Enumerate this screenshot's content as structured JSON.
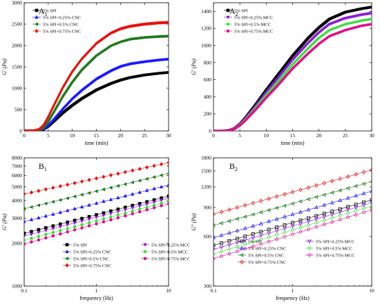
{
  "chart_data": [
    {
      "panel_label": "A",
      "panel_sub": "1",
      "type": "scatter",
      "xlabel": "time (min)",
      "ylabel": "G' (Pa)",
      "xlim": [
        0,
        30
      ],
      "ylim": [
        0,
        3000
      ],
      "xscale": "linear",
      "yscale": "linear",
      "x_ticks": [
        0,
        5,
        10,
        15,
        20,
        25,
        30
      ],
      "x_tick_labels": [
        "0",
        "5",
        "10",
        "15",
        "20",
        "25",
        "30"
      ],
      "y_ticks": [
        0,
        500,
        1000,
        1500,
        2000,
        2500,
        3000
      ],
      "y_tick_labels": [
        "0",
        "500",
        "1000",
        "1500",
        "2000",
        "2500",
        "3000"
      ],
      "legend_position": "top-left",
      "series": [
        {
          "name": "5% SPI",
          "color": "#000000",
          "marker": "square",
          "x": [
            0,
            2,
            3,
            4,
            5,
            6,
            8,
            10,
            12,
            15,
            18,
            20,
            22,
            25,
            28,
            30
          ],
          "y": [
            0,
            3,
            10,
            40,
            110,
            210,
            420,
            600,
            760,
            960,
            1110,
            1190,
            1250,
            1310,
            1350,
            1370
          ]
        },
        {
          "name": "5% SPI+0.25% CNC",
          "color": "#1a1aff",
          "marker": "triangle-up",
          "x": [
            0,
            2,
            3,
            4,
            5,
            6,
            8,
            10,
            12,
            15,
            18,
            20,
            22,
            25,
            28,
            30
          ],
          "y": [
            0,
            3,
            12,
            50,
            140,
            260,
            520,
            760,
            960,
            1220,
            1410,
            1510,
            1570,
            1620,
            1660,
            1680
          ]
        },
        {
          "name": "5% SPI+0.5% CNC",
          "color": "#1b7a1b",
          "marker": "triangle-left",
          "x": [
            0,
            2,
            3,
            4,
            5,
            6,
            8,
            10,
            12,
            15,
            18,
            20,
            22,
            25,
            28,
            30
          ],
          "y": [
            0,
            4,
            20,
            80,
            230,
            420,
            810,
            1150,
            1440,
            1770,
            2000,
            2090,
            2150,
            2190,
            2210,
            2220
          ]
        },
        {
          "name": "5% SPI+0.75% CNC",
          "color": "#e8130e",
          "marker": "diamond",
          "x": [
            0,
            2,
            3,
            4,
            5,
            6,
            8,
            10,
            12,
            15,
            18,
            20,
            22,
            25,
            28,
            30
          ],
          "y": [
            0,
            5,
            30,
            130,
            330,
            560,
            1010,
            1390,
            1690,
            2050,
            2290,
            2390,
            2450,
            2500,
            2530,
            2540
          ]
        }
      ]
    },
    {
      "panel_label": "A",
      "panel_sub": "2",
      "type": "scatter",
      "xlabel": "time (min)",
      "ylabel": "G' (Pa)",
      "xlim": [
        0,
        30
      ],
      "ylim": [
        0,
        1500
      ],
      "xscale": "linear",
      "yscale": "linear",
      "x_ticks": [
        0,
        5,
        10,
        15,
        20,
        25,
        30
      ],
      "x_tick_labels": [
        "0",
        "5",
        "10",
        "15",
        "20",
        "25",
        "30"
      ],
      "y_ticks": [
        0,
        200,
        400,
        600,
        800,
        1000,
        1200,
        1400
      ],
      "y_tick_labels": [
        "0",
        "200",
        "400",
        "600",
        "800",
        "1000",
        "1200",
        "1400"
      ],
      "legend_position": "top-left",
      "series": [
        {
          "name": "5% SPI",
          "color": "#000000",
          "marker": "square",
          "x": [
            0,
            2,
            3,
            4,
            5,
            6,
            8,
            10,
            12,
            15,
            18,
            20,
            22,
            25,
            28,
            30
          ],
          "y": [
            0,
            2,
            8,
            30,
            80,
            150,
            310,
            480,
            640,
            880,
            1090,
            1210,
            1310,
            1390,
            1430,
            1450
          ]
        },
        {
          "name": "5% SPI+0.25% MCC",
          "color": "#8a1bd6",
          "marker": "triangle-down",
          "x": [
            0,
            2,
            3,
            4,
            5,
            6,
            8,
            10,
            12,
            15,
            18,
            20,
            22,
            25,
            28,
            30
          ],
          "y": [
            0,
            2,
            7,
            28,
            75,
            140,
            290,
            450,
            600,
            830,
            1030,
            1150,
            1250,
            1320,
            1360,
            1380
          ]
        },
        {
          "name": "5% SPI+0.5% MCC",
          "color": "#44dd44",
          "marker": "circle",
          "x": [
            0,
            2,
            3,
            4,
            5,
            6,
            8,
            10,
            12,
            15,
            18,
            20,
            22,
            25,
            28,
            30
          ],
          "y": [
            0,
            2,
            6,
            26,
            70,
            130,
            270,
            420,
            560,
            780,
            970,
            1090,
            1180,
            1250,
            1290,
            1310
          ]
        },
        {
          "name": "5% SPI+0.75% MCC",
          "color": "#e0128a",
          "marker": "circle",
          "x": [
            0,
            2,
            3,
            4,
            5,
            6,
            8,
            10,
            12,
            15,
            18,
            20,
            22,
            25,
            28,
            30
          ],
          "y": [
            0,
            2,
            6,
            24,
            65,
            120,
            250,
            390,
            520,
            730,
            910,
            1020,
            1110,
            1180,
            1230,
            1250
          ]
        }
      ]
    },
    {
      "panel_label": "B",
      "panel_sub": "1",
      "type": "scatter",
      "xlabel": "frequency (Hz)",
      "ylabel": "G' (Pa)",
      "xlim": [
        0.1,
        10
      ],
      "ylim": [
        1000,
        8000
      ],
      "xscale": "log",
      "yscale": "log",
      "x_ticks": [
        0.1,
        1,
        10
      ],
      "x_tick_labels": [
        "0.1",
        "1",
        "10"
      ],
      "y_ticks": [
        1000,
        2000,
        3000,
        4000,
        5000,
        6000,
        7000,
        8000
      ],
      "y_tick_labels": [
        "1000",
        "2000",
        "3000",
        "4000",
        "5000",
        "6000",
        "7000",
        "8000"
      ],
      "legend_position": "bottom-center",
      "series": [
        {
          "name": "5% SPI",
          "color": "#000000",
          "marker": "square",
          "filled": true,
          "x": [
            0.1,
            10
          ],
          "y": [
            2350,
            4300
          ]
        },
        {
          "name": "5% SPI+0.25% CNC",
          "color": "#1a1aff",
          "marker": "triangle-up",
          "filled": true,
          "x": [
            0.1,
            10
          ],
          "y": [
            2850,
            5150
          ]
        },
        {
          "name": "5% SPI+0.5% CNC",
          "color": "#1b7a1b",
          "marker": "triangle-left",
          "filled": true,
          "x": [
            0.1,
            10
          ],
          "y": [
            3500,
            6200
          ]
        },
        {
          "name": "5% SPI+0.75% CNC",
          "color": "#e8130e",
          "marker": "diamond",
          "filled": true,
          "x": [
            0.1,
            10
          ],
          "y": [
            4450,
            7400
          ]
        },
        {
          "name": "5% SPI+0.25% MCC",
          "color": "#8a1bd6",
          "marker": "triangle-down",
          "filled": true,
          "x": [
            0.1,
            10
          ],
          "y": [
            2250,
            4150
          ]
        },
        {
          "name": "5% SPI+0.5% MCC",
          "color": "#44dd44",
          "marker": "circle",
          "filled": true,
          "x": [
            0.1,
            10
          ],
          "y": [
            2100,
            3950
          ]
        },
        {
          "name": "5% SPI+0.75% MCC",
          "color": "#e0128a",
          "marker": "circle",
          "filled": true,
          "x": [
            0.1,
            10
          ],
          "y": [
            1980,
            3800
          ]
        }
      ]
    },
    {
      "panel_label": "B",
      "panel_sub": "2",
      "type": "scatter",
      "xlabel": "frequency (Hz)",
      "ylabel": "G'' (Pa)",
      "xlim": [
        0.1,
        10
      ],
      "ylim": [
        300,
        1800
      ],
      "xscale": "log",
      "yscale": "log",
      "x_ticks": [
        0.1,
        1,
        10
      ],
      "x_tick_labels": [
        "0.1",
        "1",
        "10"
      ],
      "y_ticks": [
        300,
        600,
        900,
        1200,
        1500,
        1800
      ],
      "y_tick_labels": [
        "300",
        "600",
        "900",
        "1200",
        "1500",
        "1800"
      ],
      "legend_position": "bottom-center",
      "series": [
        {
          "name": "5% SPI",
          "color": "#000000",
          "marker": "square",
          "filled": false,
          "x": [
            0.1,
            10
          ],
          "y": [
            530,
            1000
          ]
        },
        {
          "name": "5% SPI+0.25% CNC",
          "color": "#1a1aff",
          "marker": "triangle-up",
          "filled": false,
          "x": [
            0.1,
            10
          ],
          "y": [
            590,
            1130
          ]
        },
        {
          "name": "5% SPI+0.5% CNC",
          "color": "#1b7a1b",
          "marker": "triangle-left",
          "filled": false,
          "x": [
            0.1,
            10
          ],
          "y": [
            700,
            1290
          ]
        },
        {
          "name": "5% SPI+0.75% CNC",
          "color": "#e8130e",
          "marker": "diamond",
          "filled": false,
          "x": [
            0.1,
            10
          ],
          "y": [
            820,
            1520
          ]
        },
        {
          "name": "5% SPI+0.25% MCC",
          "color": "#8a1bd6",
          "marker": "triangle-down",
          "filled": false,
          "x": [
            0.1,
            10
          ],
          "y": [
            500,
            960
          ]
        },
        {
          "name": "5% SPI+0.5% MCC",
          "color": "#44dd44",
          "marker": "circle",
          "filled": false,
          "x": [
            0.1,
            10
          ],
          "y": [
            470,
            920
          ]
        },
        {
          "name": "5% SPI+0.75% MCC",
          "color": "#e0128a",
          "marker": "circle",
          "filled": false,
          "x": [
            0.1,
            10
          ],
          "y": [
            440,
            870
          ]
        }
      ]
    }
  ]
}
